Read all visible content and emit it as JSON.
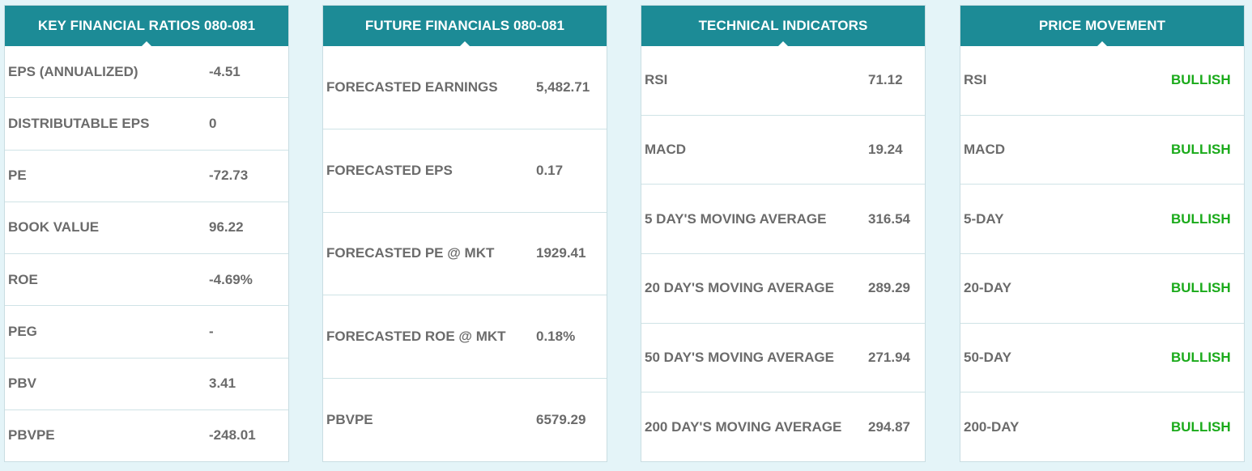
{
  "colors": {
    "header_bg": "#1c8b96",
    "page_bg": "#e4f4f8",
    "text": "#6b6b6b",
    "bullish": "#1aaa1a"
  },
  "cards": [
    {
      "title": "KEY FINANCIAL RATIOS 080-081",
      "rows": [
        {
          "label": "EPS (ANNUALIZED)",
          "value": "-4.51"
        },
        {
          "label": "DISTRIBUTABLE EPS",
          "value": "0"
        },
        {
          "label": "PE",
          "value": "-72.73"
        },
        {
          "label": "BOOK VALUE",
          "value": "96.22"
        },
        {
          "label": "ROE",
          "value": "-4.69%"
        },
        {
          "label": "PEG",
          "value": "-"
        },
        {
          "label": "PBV",
          "value": "3.41"
        },
        {
          "label": "PBVPE",
          "value": "-248.01"
        }
      ]
    },
    {
      "title": "FUTURE FINANCIALS 080-081",
      "rows": [
        {
          "label": "FORECASTED EARNINGS",
          "value": "5,482.71"
        },
        {
          "label": "FORECASTED EPS",
          "value": "0.17"
        },
        {
          "label": "FORECASTED PE @ MKT",
          "value": "1929.41"
        },
        {
          "label": "FORECASTED ROE @ MKT",
          "value": "0.18%"
        },
        {
          "label": "PBVPE",
          "value": "6579.29"
        }
      ]
    },
    {
      "title": "TECHNICAL INDICATORS",
      "rows": [
        {
          "label": "RSI",
          "value": "71.12"
        },
        {
          "label": "MACD",
          "value": "19.24"
        },
        {
          "label": "5 DAY'S MOVING AVERAGE",
          "value": "316.54"
        },
        {
          "label": "20 DAY'S MOVING AVERAGE",
          "value": "289.29"
        },
        {
          "label": "50 DAY'S MOVING AVERAGE",
          "value": "271.94"
        },
        {
          "label": "200 DAY'S MOVING AVERAGE",
          "value": "294.87"
        }
      ]
    },
    {
      "title": "PRICE MOVEMENT",
      "rows": [
        {
          "label": "RSI",
          "value": "BULLISH"
        },
        {
          "label": "MACD",
          "value": "BULLISH"
        },
        {
          "label": "5-DAY",
          "value": "BULLISH"
        },
        {
          "label": "20-DAY",
          "value": "BULLISH"
        },
        {
          "label": "50-DAY",
          "value": "BULLISH"
        },
        {
          "label": "200-DAY",
          "value": "BULLISH"
        }
      ]
    }
  ]
}
